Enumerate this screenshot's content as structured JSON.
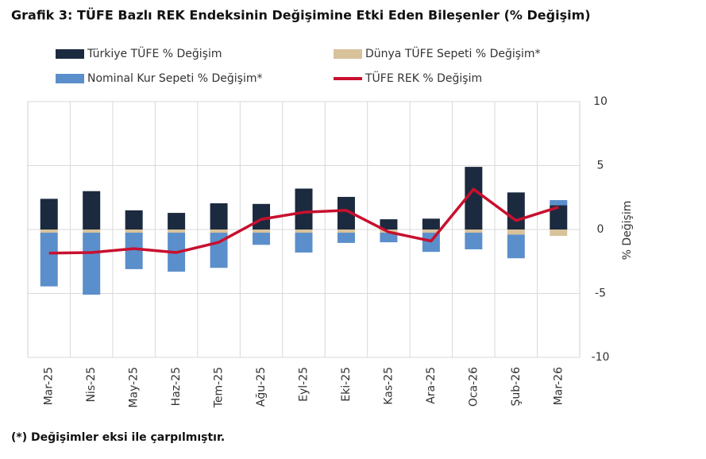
{
  "chart_data": {
    "type": "bar",
    "title": "Grafik 3: TÜFE Bazlı REK Endeksinin Değişimine Etki Eden Bileşenler (% Değişim)",
    "footnote": "(*) Değişimler eksi ile çarpılmıştır.",
    "y_label": "% Değişim",
    "categories": [
      "Mar-25",
      "Nis-25",
      "May-25",
      "Haz-25",
      "Tem-25",
      "Ağu-25",
      "Eyl-25",
      "Eki-25",
      "Kas-25",
      "Ara-25",
      "Oca-26",
      "Şub-26",
      "Mar-26"
    ],
    "series": [
      {
        "name": "Türkiye TÜFE % Değişim",
        "color": "#1c2a3f",
        "type": "bar",
        "values": [
          2.4,
          3.0,
          1.5,
          1.3,
          2.05,
          2.0,
          3.2,
          2.55,
          0.8,
          0.85,
          4.9,
          2.9,
          1.9
        ]
      },
      {
        "name": "Dünya TÜFE Sepeti % Değişim*",
        "color": "#d8c29a",
        "type": "bar",
        "values": [
          -0.25,
          -0.25,
          -0.25,
          -0.25,
          -0.25,
          -0.25,
          -0.25,
          -0.25,
          -0.25,
          -0.25,
          -0.25,
          -0.4,
          -0.5
        ]
      },
      {
        "name": "Nominal Kur Sepeti % Değişim*",
        "color": "#5b8fcb",
        "type": "bar",
        "values": [
          -4.2,
          -4.85,
          -2.85,
          -3.05,
          -2.75,
          -0.95,
          -1.55,
          -0.8,
          -0.75,
          -1.5,
          -1.3,
          -1.85,
          0.4
        ]
      },
      {
        "name": "TÜFE REK % Değişim",
        "color": "#c8102e",
        "type": "line",
        "values": [
          -1.85,
          -1.8,
          -1.5,
          -1.8,
          -1.0,
          0.8,
          1.35,
          1.5,
          -0.2,
          -0.9,
          3.15,
          0.7,
          1.75
        ]
      }
    ],
    "ylim": [
      -10,
      10
    ],
    "yticks": [
      -10,
      -5,
      0,
      5,
      10
    ],
    "grid": true,
    "legend": "top"
  }
}
